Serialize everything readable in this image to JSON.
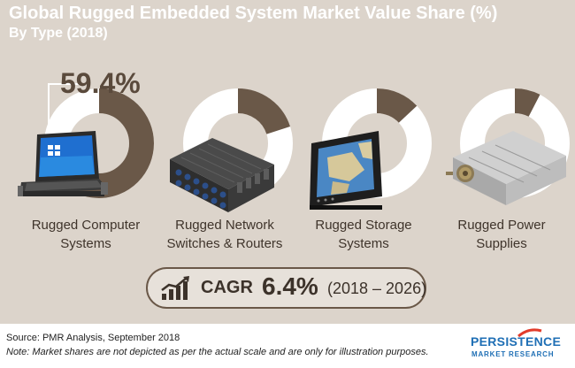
{
  "chart_data": {
    "type": "pie",
    "title": "Global Rugged Embedded System Market Value Share (%)",
    "subtitle": "By Type (2018)",
    "categories": [
      "Rugged Computer Systems",
      "Rugged Network Switches & Routers",
      "Rugged Storage Systems",
      "Rugged Power Supplies"
    ],
    "category_lines": [
      [
        "Rugged Computer",
        "Systems"
      ],
      [
        "Rugged Network",
        "Switches & Routers"
      ],
      [
        "Rugged Storage",
        "Systems"
      ],
      [
        "Rugged Power",
        "Supplies"
      ]
    ],
    "values": [
      59.4,
      20.0,
      13.0,
      7.6
    ],
    "highlight_label": "59.4%",
    "colors": {
      "slice": "#6a5848",
      "track": "#ffffff",
      "background": "#dcd4cb"
    }
  },
  "cagr": {
    "label": "CAGR",
    "value": "6.4%",
    "period": "(2018 – 2026)"
  },
  "footer": {
    "source": "Source: PMR Analysis, September 2018",
    "note": "Note: Market shares are not depicted as per the actual scale and are only for illustration purposes."
  },
  "logo": {
    "name": "PERSISTENCE",
    "subtitle": "MARKET RESEARCH"
  },
  "images": [
    {
      "icon": "rugged-laptop-icon"
    },
    {
      "icon": "network-switch-icon"
    },
    {
      "icon": "storage-monitor-icon"
    },
    {
      "icon": "power-supply-icon"
    }
  ]
}
